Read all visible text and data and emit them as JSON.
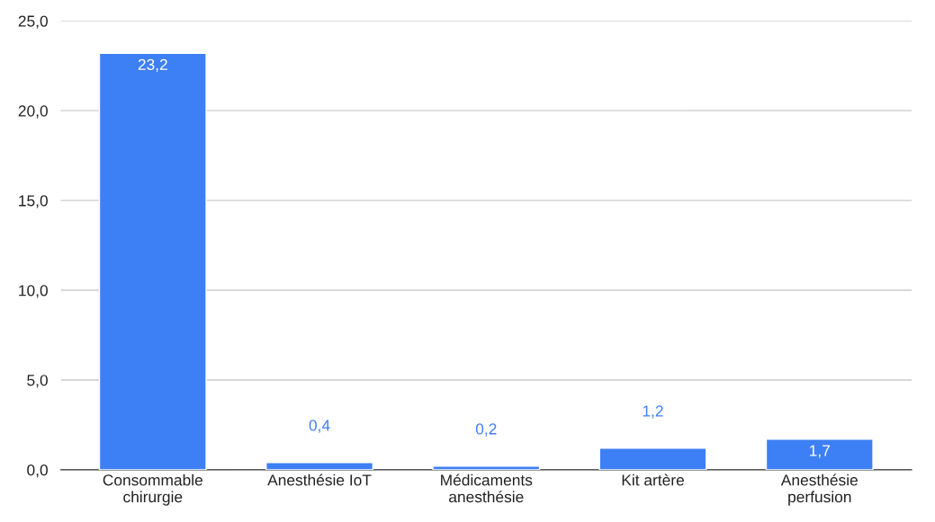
{
  "chart_data": {
    "type": "bar",
    "categories": [
      "Consommable chirurgie",
      "Anesthésie IoT",
      "Médicaments anesthésie",
      "Kit artère",
      "Anesthésie perfusion"
    ],
    "values": [
      23.2,
      0.4,
      0.2,
      1.2,
      1.7
    ],
    "value_labels": [
      "23,2",
      "0,4",
      "0,2",
      "1,2",
      "1,7"
    ],
    "color": "#3d7ff5",
    "ylim": [
      0,
      25
    ],
    "yticks": [
      {
        "value": 0,
        "label": "0,0"
      },
      {
        "value": 5,
        "label": "5,0"
      },
      {
        "value": 10,
        "label": "10,0"
      },
      {
        "value": 15,
        "label": "15,0"
      },
      {
        "value": 20,
        "label": "20,0"
      },
      {
        "value": 25,
        "label": "25,0"
      }
    ],
    "grid": "y"
  }
}
